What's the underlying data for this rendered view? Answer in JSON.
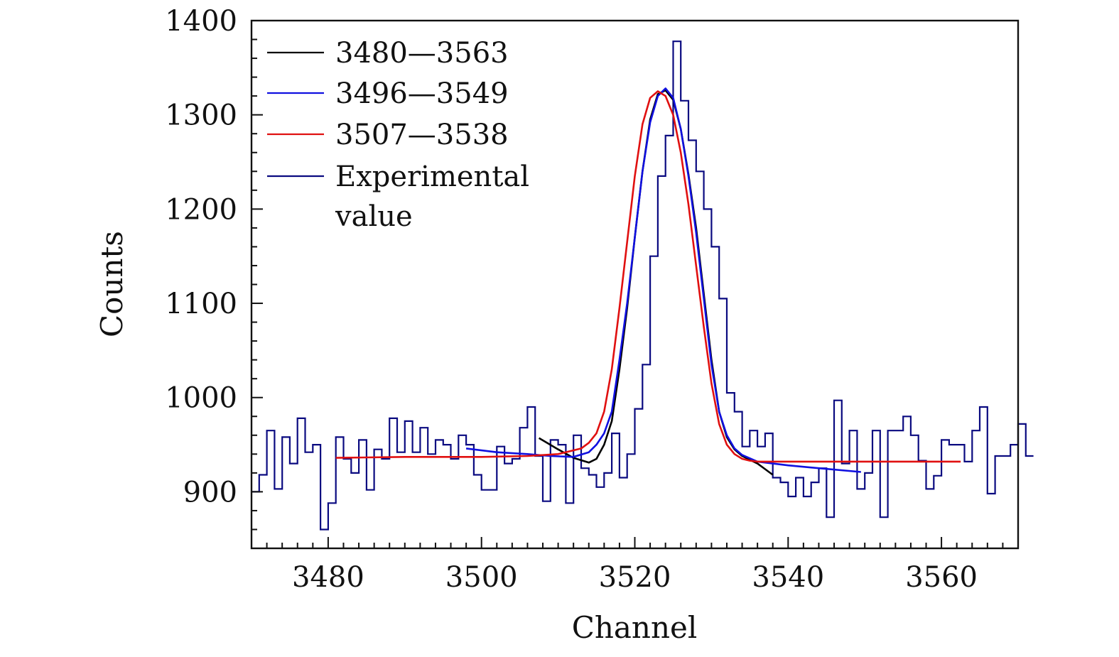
{
  "chart_data": {
    "type": "line",
    "xlabel": "Channel",
    "ylabel": "Counts",
    "xlim": [
      3470,
      3570
    ],
    "ylim": [
      840,
      1400
    ],
    "x_ticks": [
      3480,
      3500,
      3520,
      3540,
      3560
    ],
    "x_tick_labels": [
      "3480",
      "3500",
      "3520",
      "3540",
      "3560"
    ],
    "y_ticks": [
      900,
      1000,
      1100,
      1200,
      1300,
      1400
    ],
    "y_tick_labels": [
      "900",
      "1000",
      "1100",
      "1200",
      "1300",
      "1400"
    ],
    "legend_position": "top-left",
    "legend": [
      {
        "label": "3480—3563",
        "color": "#000000"
      },
      {
        "label": "3496—3549",
        "color": "#1010e0"
      },
      {
        "label": "3507—3538",
        "color": "#e01010"
      },
      {
        "label": "Experimental",
        "label2": "value",
        "color": "#0a0a80"
      }
    ],
    "experimental": {
      "name": "Experimental value",
      "color": "#0a0a80",
      "x_start": 3470,
      "bin_width": 1,
      "counts": [
        900,
        918,
        965,
        903,
        958,
        930,
        978,
        942,
        950,
        860,
        888,
        958,
        935,
        920,
        955,
        902,
        945,
        935,
        978,
        942,
        975,
        942,
        968,
        940,
        955,
        950,
        935,
        960,
        950,
        918,
        902,
        902,
        948,
        930,
        935,
        968,
        990,
        938,
        890,
        955,
        950,
        888,
        960,
        925,
        918,
        905,
        920,
        962,
        915,
        940,
        988,
        1035,
        1150,
        1235,
        1278,
        1378,
        1315,
        1273,
        1240,
        1200,
        1160,
        1105,
        1005,
        985,
        948,
        965,
        948,
        962,
        915,
        910,
        895,
        915,
        895,
        910,
        925,
        873,
        997,
        930,
        965,
        903,
        920,
        965,
        873,
        965,
        965,
        980,
        960,
        933,
        903,
        917,
        955,
        950,
        950,
        932,
        965,
        990,
        898,
        938,
        938,
        950,
        972,
        938
      ]
    },
    "series": [
      {
        "name": "3480—3563",
        "color": "#000000",
        "x": [
          3507.5,
          3510,
          3512,
          3514,
          3515,
          3516,
          3517,
          3518,
          3519,
          3520,
          3521,
          3522,
          3523,
          3524,
          3525,
          3526,
          3527,
          3528,
          3529,
          3530,
          3531,
          3532,
          3533,
          3534,
          3535,
          3536,
          3537,
          3538
        ],
        "values": [
          957,
          945,
          936,
          931,
          935,
          950,
          975,
          1030,
          1095,
          1170,
          1240,
          1295,
          1322,
          1326,
          1316,
          1285,
          1237,
          1180,
          1110,
          1040,
          985,
          958,
          945,
          938,
          934,
          930,
          924,
          918
        ]
      },
      {
        "name": "3496—3549",
        "color": "#1010e0",
        "x": [
          3498,
          3502,
          3506,
          3509,
          3512,
          3514,
          3515,
          3516,
          3517,
          3518,
          3519,
          3520,
          3521,
          3522,
          3523,
          3524,
          3525,
          3526,
          3527,
          3528,
          3529,
          3530,
          3531,
          3532,
          3533,
          3534,
          3536,
          3540,
          3544,
          3549.5
        ],
        "values": [
          946,
          942,
          940,
          938,
          937,
          942,
          950,
          962,
          985,
          1040,
          1100,
          1170,
          1240,
          1292,
          1320,
          1328,
          1318,
          1285,
          1235,
          1175,
          1105,
          1035,
          985,
          960,
          946,
          939,
          932,
          928,
          925,
          921
        ]
      },
      {
        "name": "3507—3538",
        "color": "#e01010",
        "x": [
          3481,
          3490,
          3500,
          3506,
          3510,
          3513,
          3514,
          3515,
          3516,
          3517,
          3518,
          3519,
          3520,
          3521,
          3522,
          3523,
          3524,
          3525,
          3526,
          3527,
          3528,
          3529,
          3530,
          3531,
          3532,
          3533,
          3534,
          3535,
          3536,
          3540,
          3550,
          3562.5
        ],
        "values": [
          936,
          937,
          937,
          938,
          940,
          946,
          952,
          962,
          985,
          1030,
          1095,
          1165,
          1235,
          1290,
          1318,
          1325,
          1320,
          1300,
          1260,
          1205,
          1140,
          1075,
          1015,
          972,
          950,
          940,
          935,
          933,
          932,
          932,
          932,
          932
        ]
      }
    ]
  }
}
